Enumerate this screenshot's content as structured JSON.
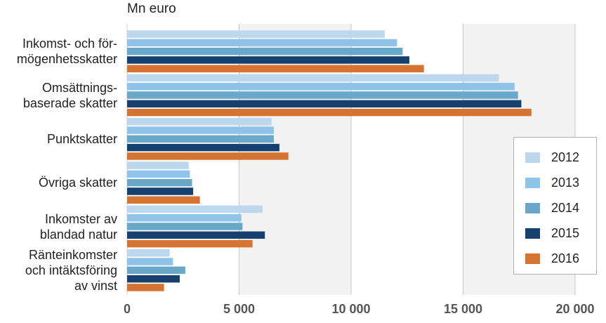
{
  "chart_data": {
    "type": "bar",
    "orientation": "horizontal",
    "unit_label": "Mn euro",
    "categories": [
      [
        "Inkomst- och för-",
        "mögenhetsskatter"
      ],
      [
        "Omsättnings-",
        "baserade skatter"
      ],
      [
        "Punktskatter"
      ],
      [
        "Övriga skatter"
      ],
      [
        "Inkomster av",
        "blandad natur"
      ],
      [
        "Ränteinkomster",
        "och intäktsföring",
        "av vinst"
      ]
    ],
    "series": [
      {
        "name": "2012",
        "color": "#bdd7ee",
        "values": [
          11500,
          16600,
          6450,
          2750,
          6050,
          1900
        ]
      },
      {
        "name": "2013",
        "color": "#8fc3ea",
        "values": [
          12050,
          17300,
          6550,
          2800,
          5100,
          2050
        ]
      },
      {
        "name": "2014",
        "color": "#69a8c9",
        "values": [
          12300,
          17450,
          6550,
          2900,
          5150,
          2600
        ]
      },
      {
        "name": "2015",
        "color": "#16406e",
        "values": [
          12600,
          17600,
          6800,
          2950,
          6150,
          2350
        ]
      },
      {
        "name": "2016",
        "color": "#d57332",
        "values": [
          13250,
          18050,
          7200,
          3250,
          5600,
          1650
        ]
      }
    ],
    "xlim": [
      0,
      20000
    ],
    "ticks": [
      0,
      5000,
      10000,
      15000,
      20000
    ],
    "tick_labels": [
      "0",
      "5 000",
      "10 000",
      "15 000",
      "20 000"
    ],
    "grid": true,
    "legend_position": "right"
  }
}
